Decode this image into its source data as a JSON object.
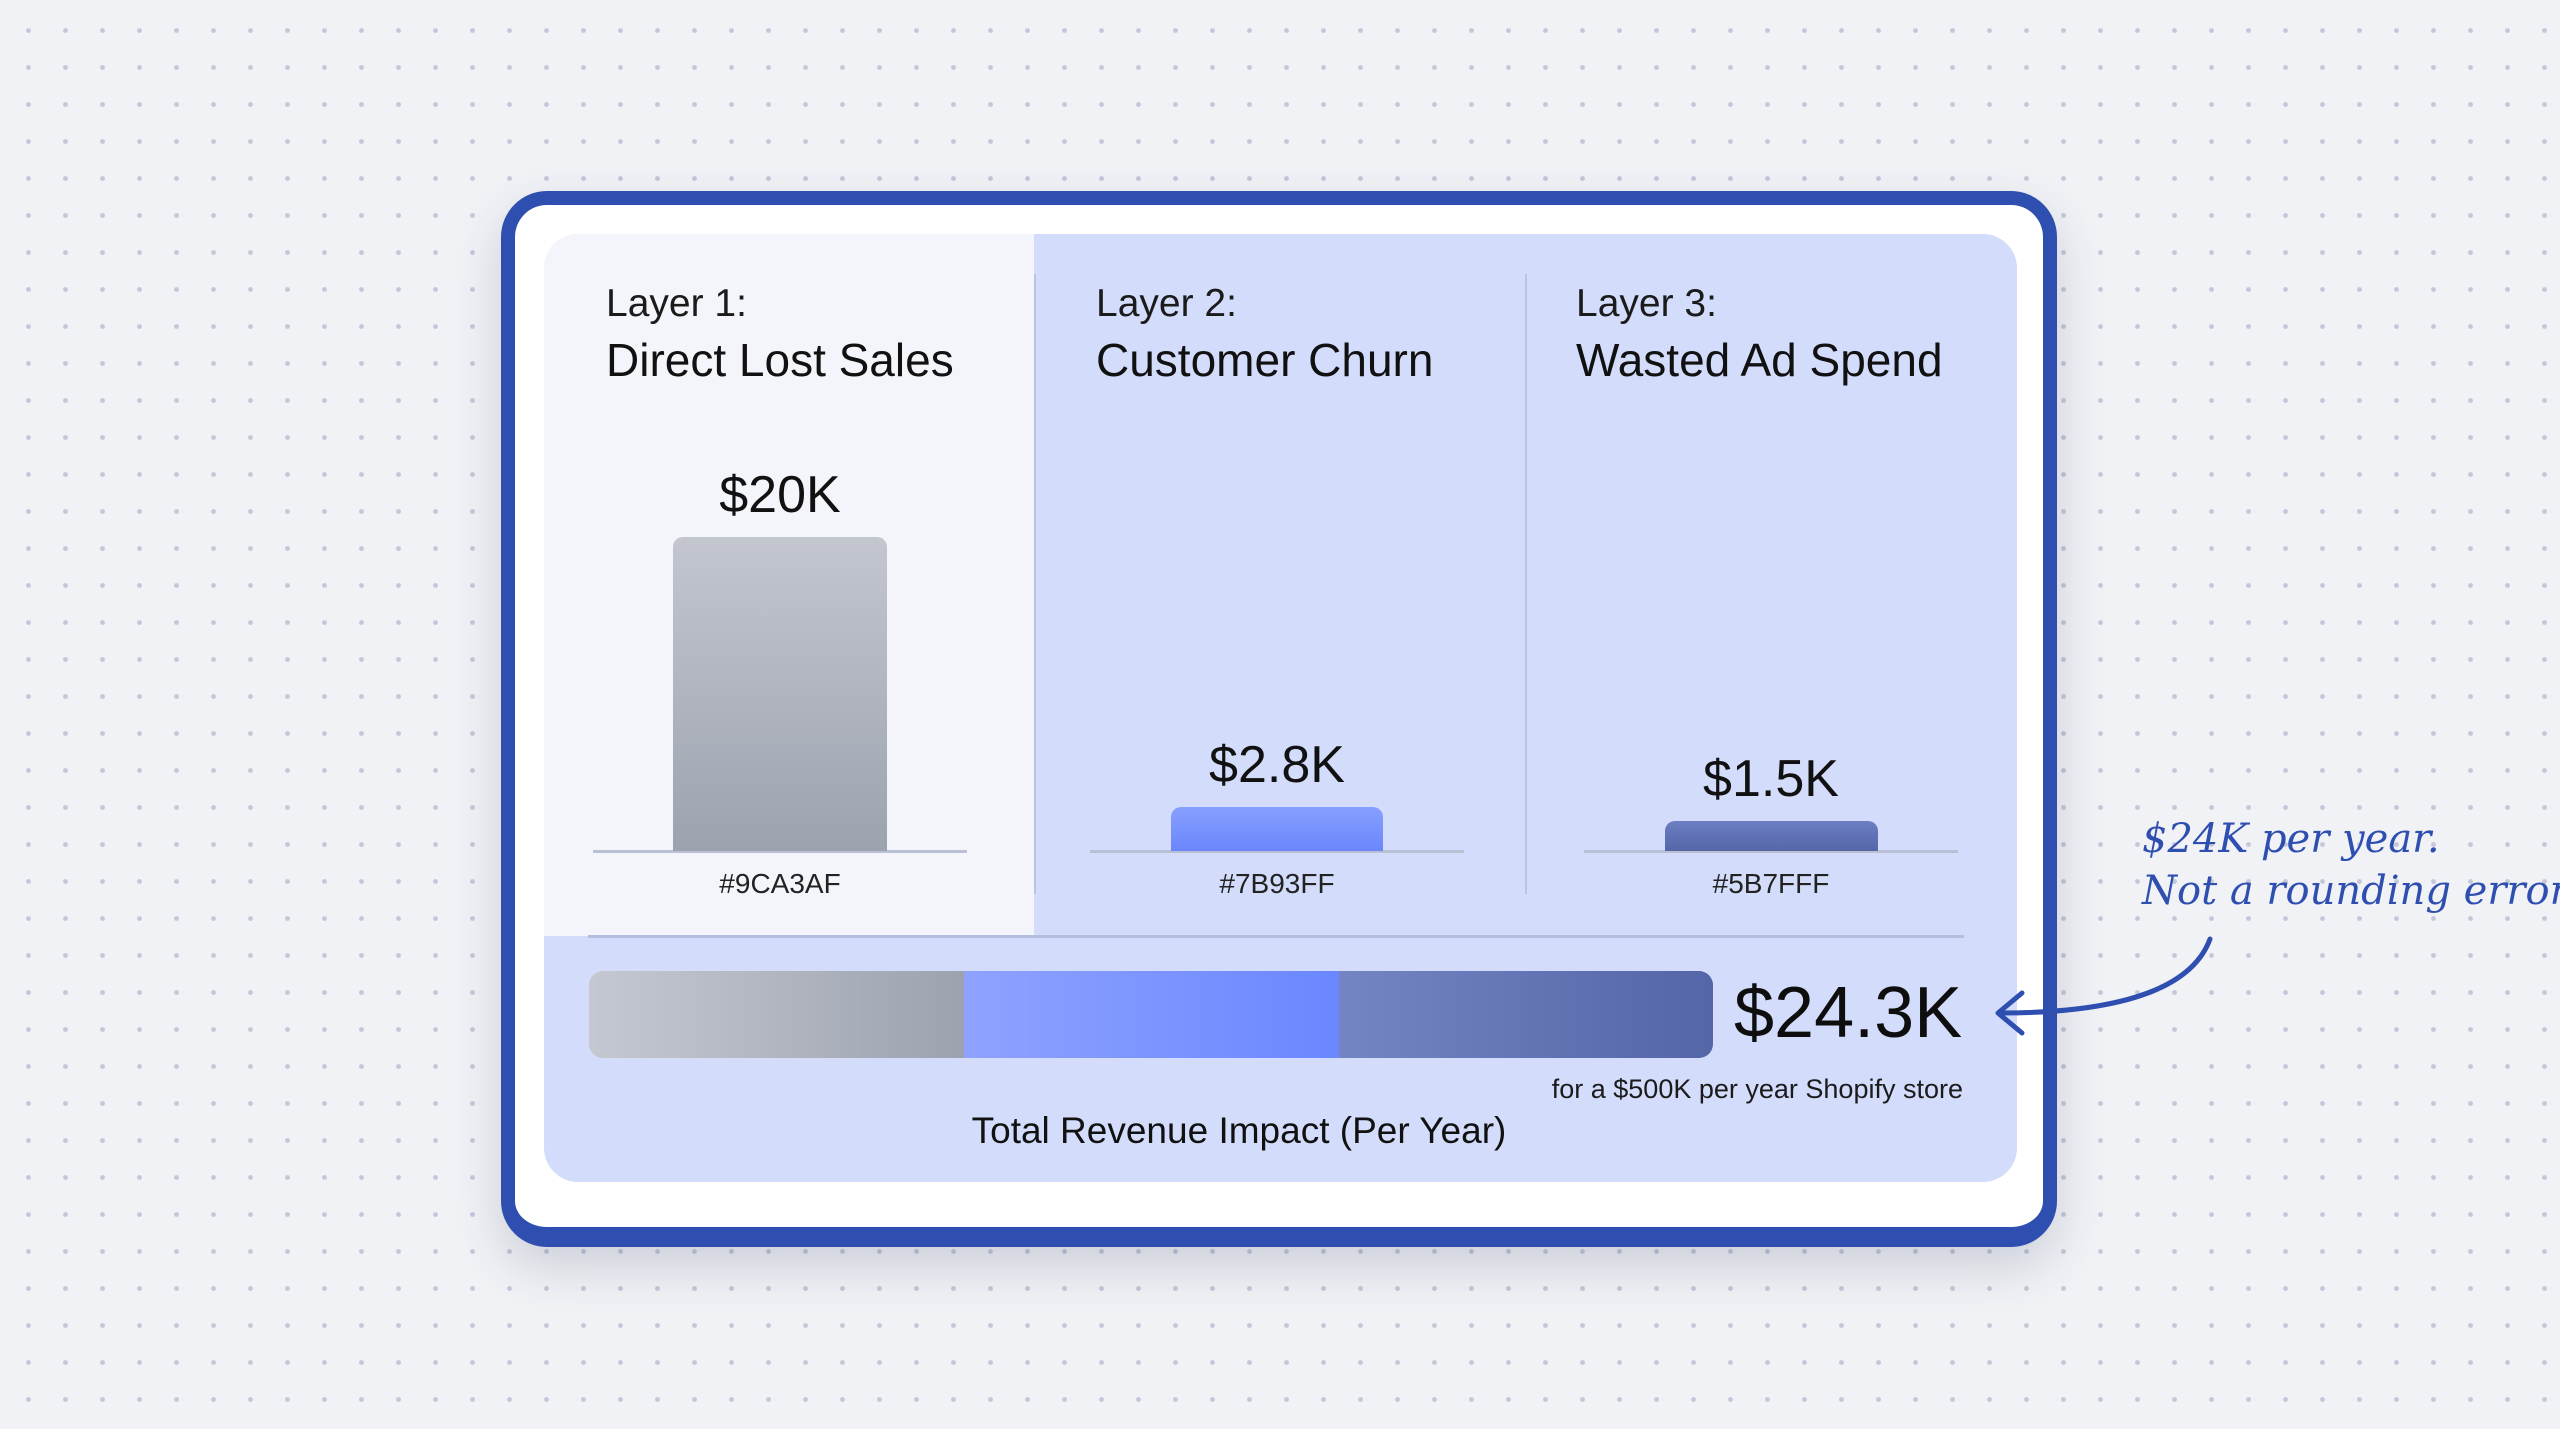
{
  "chart_data": {
    "type": "bar",
    "categories": [
      "Direct Lost Sales",
      "Customer Churn",
      "Wasted Ad Spend"
    ],
    "layers": [
      {
        "layer_label": "Layer 1:",
        "title": "Direct Lost Sales",
        "value": 20,
        "value_label": "$20K",
        "hex_label": "#9CA3AF",
        "color": "#9CA3AF"
      },
      {
        "layer_label": "Layer 2:",
        "title": "Customer Churn",
        "value": 2.8,
        "value_label": "$2.8K",
        "hex_label": "#7B93FF",
        "color": "#7B93FF"
      },
      {
        "layer_label": "Layer 3:",
        "title": "Wasted Ad Spend",
        "value": 1.5,
        "value_label": "$1.5K",
        "hex_label": "#5B7FFF",
        "color": "#5B6FB0"
      }
    ],
    "unit": "K USD",
    "total": {
      "value": 24.3,
      "label": "$24.3K",
      "subtitle": "for a $500K per year Shopify store",
      "caption": "Total Revenue Impact (Per Year)"
    }
  },
  "annotation": {
    "line1": "$24K per year.",
    "line2": "Not a rounding error.",
    "color": "#2F4FB0"
  },
  "colors": {
    "frame": "#2F4FB0",
    "panel": "#D3DDFB"
  }
}
